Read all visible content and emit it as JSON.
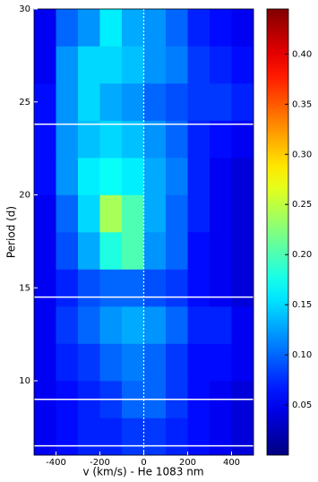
{
  "chart_data": {
    "type": "heatmap",
    "x_label": "v (km/s) - He 1083 nm",
    "y_label": "Period (d)",
    "xlim": [
      -500,
      500
    ],
    "xticks": [
      -400,
      -200,
      0,
      200,
      400
    ],
    "ylim": [
      6,
      30
    ],
    "yticks": [
      10,
      15,
      20,
      25,
      30
    ],
    "xbins": [
      -500,
      -400,
      -300,
      -200,
      -100,
      0,
      100,
      200,
      300,
      400,
      500
    ],
    "ybins": [
      6,
      8,
      10,
      12,
      14,
      16,
      18,
      20,
      22,
      24,
      26,
      28,
      30
    ],
    "z": [
      [
        0.05,
        0.06,
        0.07,
        0.07,
        0.08,
        0.08,
        0.07,
        0.06,
        0.05,
        0.04
      ],
      [
        0.05,
        0.06,
        0.07,
        0.08,
        0.1,
        0.1,
        0.08,
        0.06,
        0.05,
        0.04
      ],
      [
        0.05,
        0.07,
        0.08,
        0.1,
        0.11,
        0.1,
        0.08,
        0.06,
        0.06,
        0.05
      ],
      [
        0.05,
        0.08,
        0.1,
        0.12,
        0.13,
        0.12,
        0.1,
        0.07,
        0.07,
        0.05
      ],
      [
        0.05,
        0.07,
        0.09,
        0.1,
        0.1,
        0.09,
        0.08,
        0.06,
        0.05,
        0.04
      ],
      [
        0.05,
        0.09,
        0.13,
        0.18,
        0.2,
        0.12,
        0.1,
        0.06,
        0.05,
        0.04
      ],
      [
        0.05,
        0.1,
        0.15,
        0.24,
        0.2,
        0.13,
        0.1,
        0.07,
        0.05,
        0.04
      ],
      [
        0.06,
        0.12,
        0.16,
        0.17,
        0.16,
        0.13,
        0.11,
        0.07,
        0.05,
        0.04
      ],
      [
        0.06,
        0.12,
        0.14,
        0.15,
        0.14,
        0.12,
        0.1,
        0.07,
        0.06,
        0.05
      ],
      [
        0.06,
        0.12,
        0.15,
        0.13,
        0.12,
        0.1,
        0.09,
        0.08,
        0.08,
        0.07
      ],
      [
        0.05,
        0.12,
        0.15,
        0.15,
        0.14,
        0.12,
        0.11,
        0.08,
        0.07,
        0.06
      ],
      [
        0.05,
        0.1,
        0.12,
        0.16,
        0.13,
        0.12,
        0.1,
        0.07,
        0.06,
        0.05
      ]
    ],
    "colormap": "jet",
    "clim": [
      0,
      0.445
    ],
    "cticks": [
      0.05,
      {
        "value": 0.1,
        "label": "0.10"
      },
      0.15,
      {
        "value": 0.2,
        "label": "0.20"
      },
      0.25,
      {
        "value": 0.3,
        "label": "0.30"
      },
      0.35,
      {
        "value": 0.4,
        "label": "0.40"
      }
    ],
    "hlines": [
      23.8,
      14.5,
      9.0,
      6.5
    ],
    "vline": 0
  }
}
